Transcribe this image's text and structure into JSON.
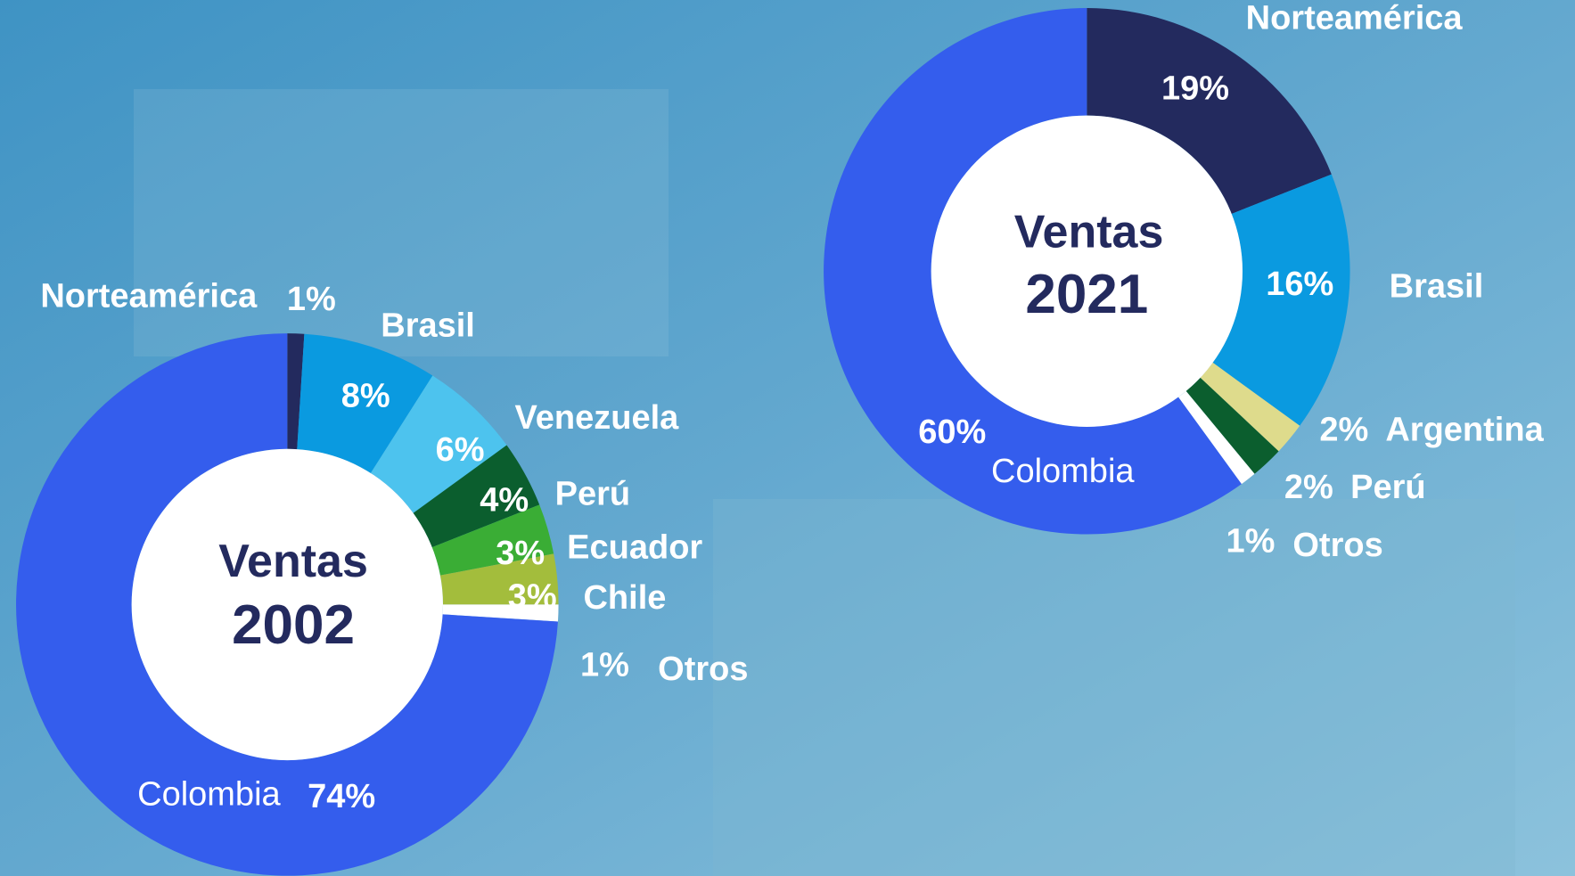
{
  "chart_data": [
    {
      "type": "pie",
      "title": "Ventas",
      "subtitle": "2002",
      "categories": [
        "Norteamérica",
        "Brasil",
        "Venezuela",
        "Perú",
        "Ecuador",
        "Chile",
        "Otros",
        "Colombia"
      ],
      "values": [
        1,
        8,
        6,
        4,
        3,
        3,
        1,
        74
      ],
      "value_labels": [
        "1%",
        "8%",
        "6%",
        "4%",
        "3%",
        "3%",
        "1%",
        "74%"
      ],
      "colors": [
        "#232a5e",
        "#0a9ae0",
        "#4dc3ee",
        "#0b5e2e",
        "#3aad35",
        "#a3bd3c",
        "#ffffff",
        "#345ded"
      ]
    },
    {
      "type": "pie",
      "title": "Ventas",
      "subtitle": "2021",
      "categories": [
        "Norteamérica",
        "Brasil",
        "Argentina",
        "Perú",
        "Otros",
        "Colombia"
      ],
      "values": [
        19,
        16,
        2,
        2,
        1,
        60
      ],
      "value_labels": [
        "19%",
        "16%",
        "2%",
        "2%",
        "1%",
        "60%"
      ],
      "colors": [
        "#232a5e",
        "#0a9ae0",
        "#dedb8c",
        "#0b5e2e",
        "#ffffff",
        "#345ded"
      ]
    }
  ]
}
